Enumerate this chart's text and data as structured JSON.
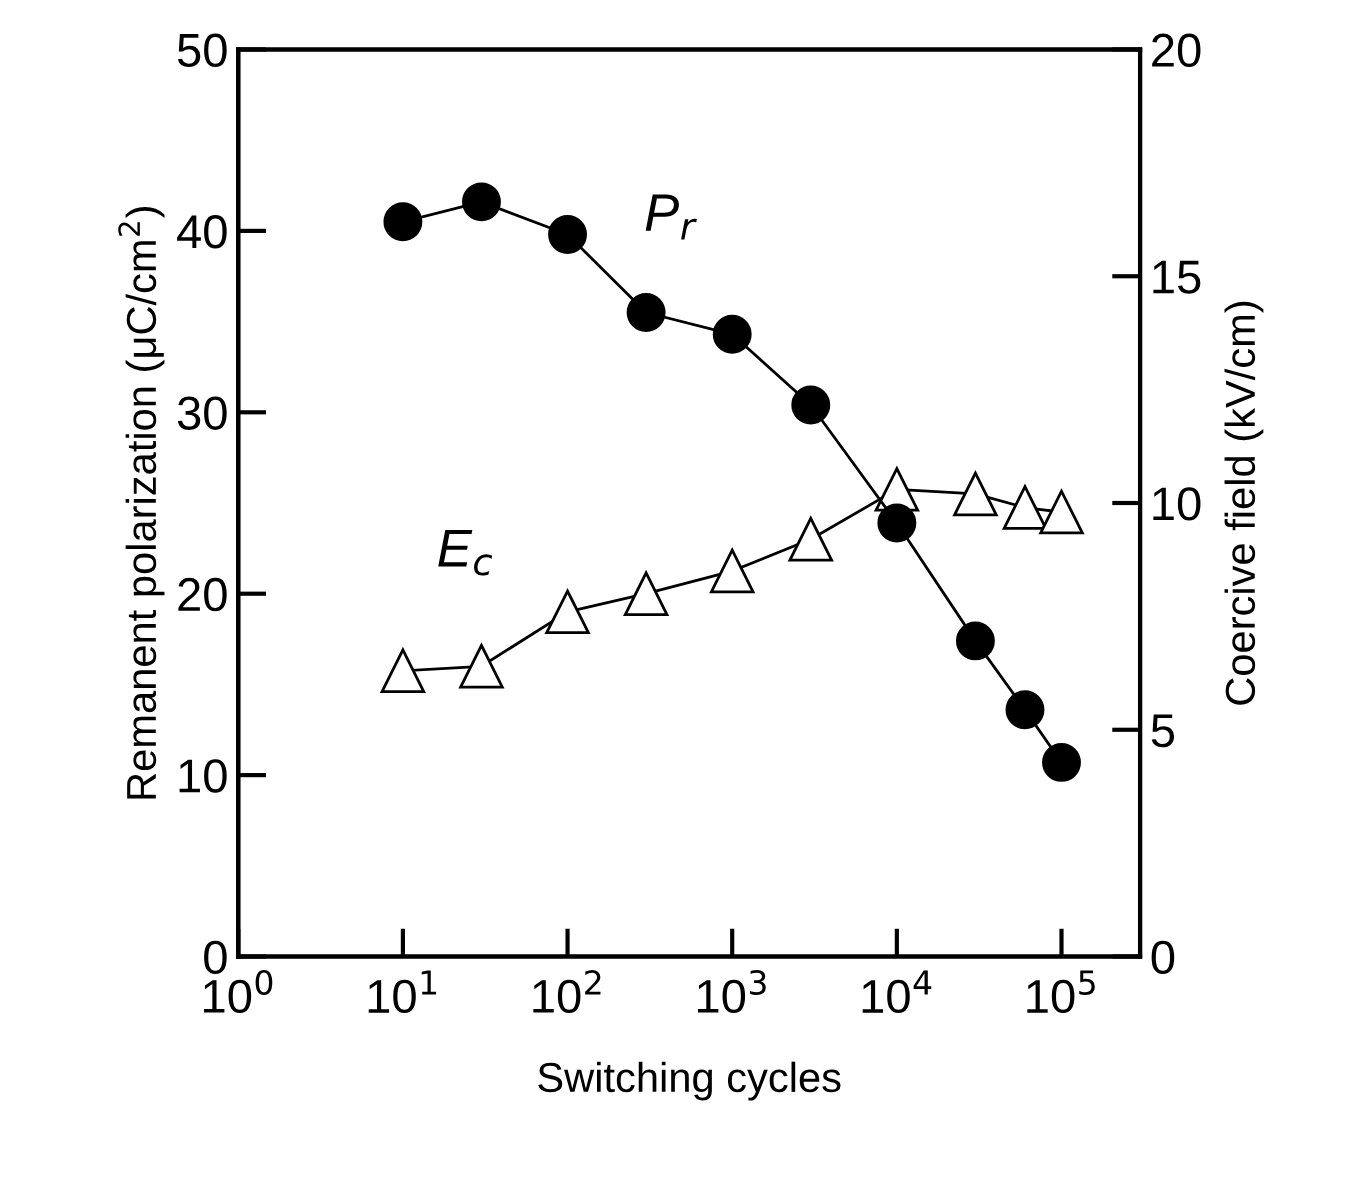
{
  "chart_data": {
    "type": "line",
    "xlabel": "Switching cycles",
    "ylabel": "Remanent polarization (μC/cm$^{2}$)",
    "y2label": "Coercive field (kV/cm)",
    "log": "x",
    "xlim": [
      1,
      300000
    ],
    "xticks": [
      {
        "value": 1,
        "label": "10$^{0}$"
      },
      {
        "value": 10,
        "label": "10$^{1}$"
      },
      {
        "value": 100,
        "label": "10$^{2}$"
      },
      {
        "value": 1000,
        "label": "10$^{3}$"
      },
      {
        "value": 10000,
        "label": "10$^{4}$"
      },
      {
        "value": 100000,
        "label": "10$^{5}$"
      }
    ],
    "ylim": [
      0,
      50
    ],
    "yticks": [
      0,
      10,
      20,
      30,
      40,
      50
    ],
    "y2lim": [
      0,
      20
    ],
    "y2ticks": [
      0,
      5,
      10,
      15,
      20
    ],
    "grid": false,
    "legend": false,
    "series": [
      {
        "name": "P$_{r}$",
        "color": "#000000",
        "marker": "circle",
        "x": [
          10,
          30,
          100,
          300,
          1000,
          3000,
          10000,
          30000,
          60000,
          100000
        ],
        "values": [
          40.5,
          41.6,
          39.8,
          35.5,
          34.3,
          30.4,
          23.9,
          17.4,
          13.6,
          10.7
        ]
      },
      {
        "name": "E$_{c}$",
        "color": "#ffffff",
        "marker": "triangle",
        "axis": "y2",
        "x": [
          10,
          30,
          100,
          300,
          1000,
          3000,
          10000,
          30000,
          60000,
          100000
        ],
        "values": [
          6.3,
          6.4,
          7.6,
          8.0,
          8.5,
          9.2,
          10.3,
          10.2,
          9.9,
          9.8
        ]
      }
    ]
  }
}
